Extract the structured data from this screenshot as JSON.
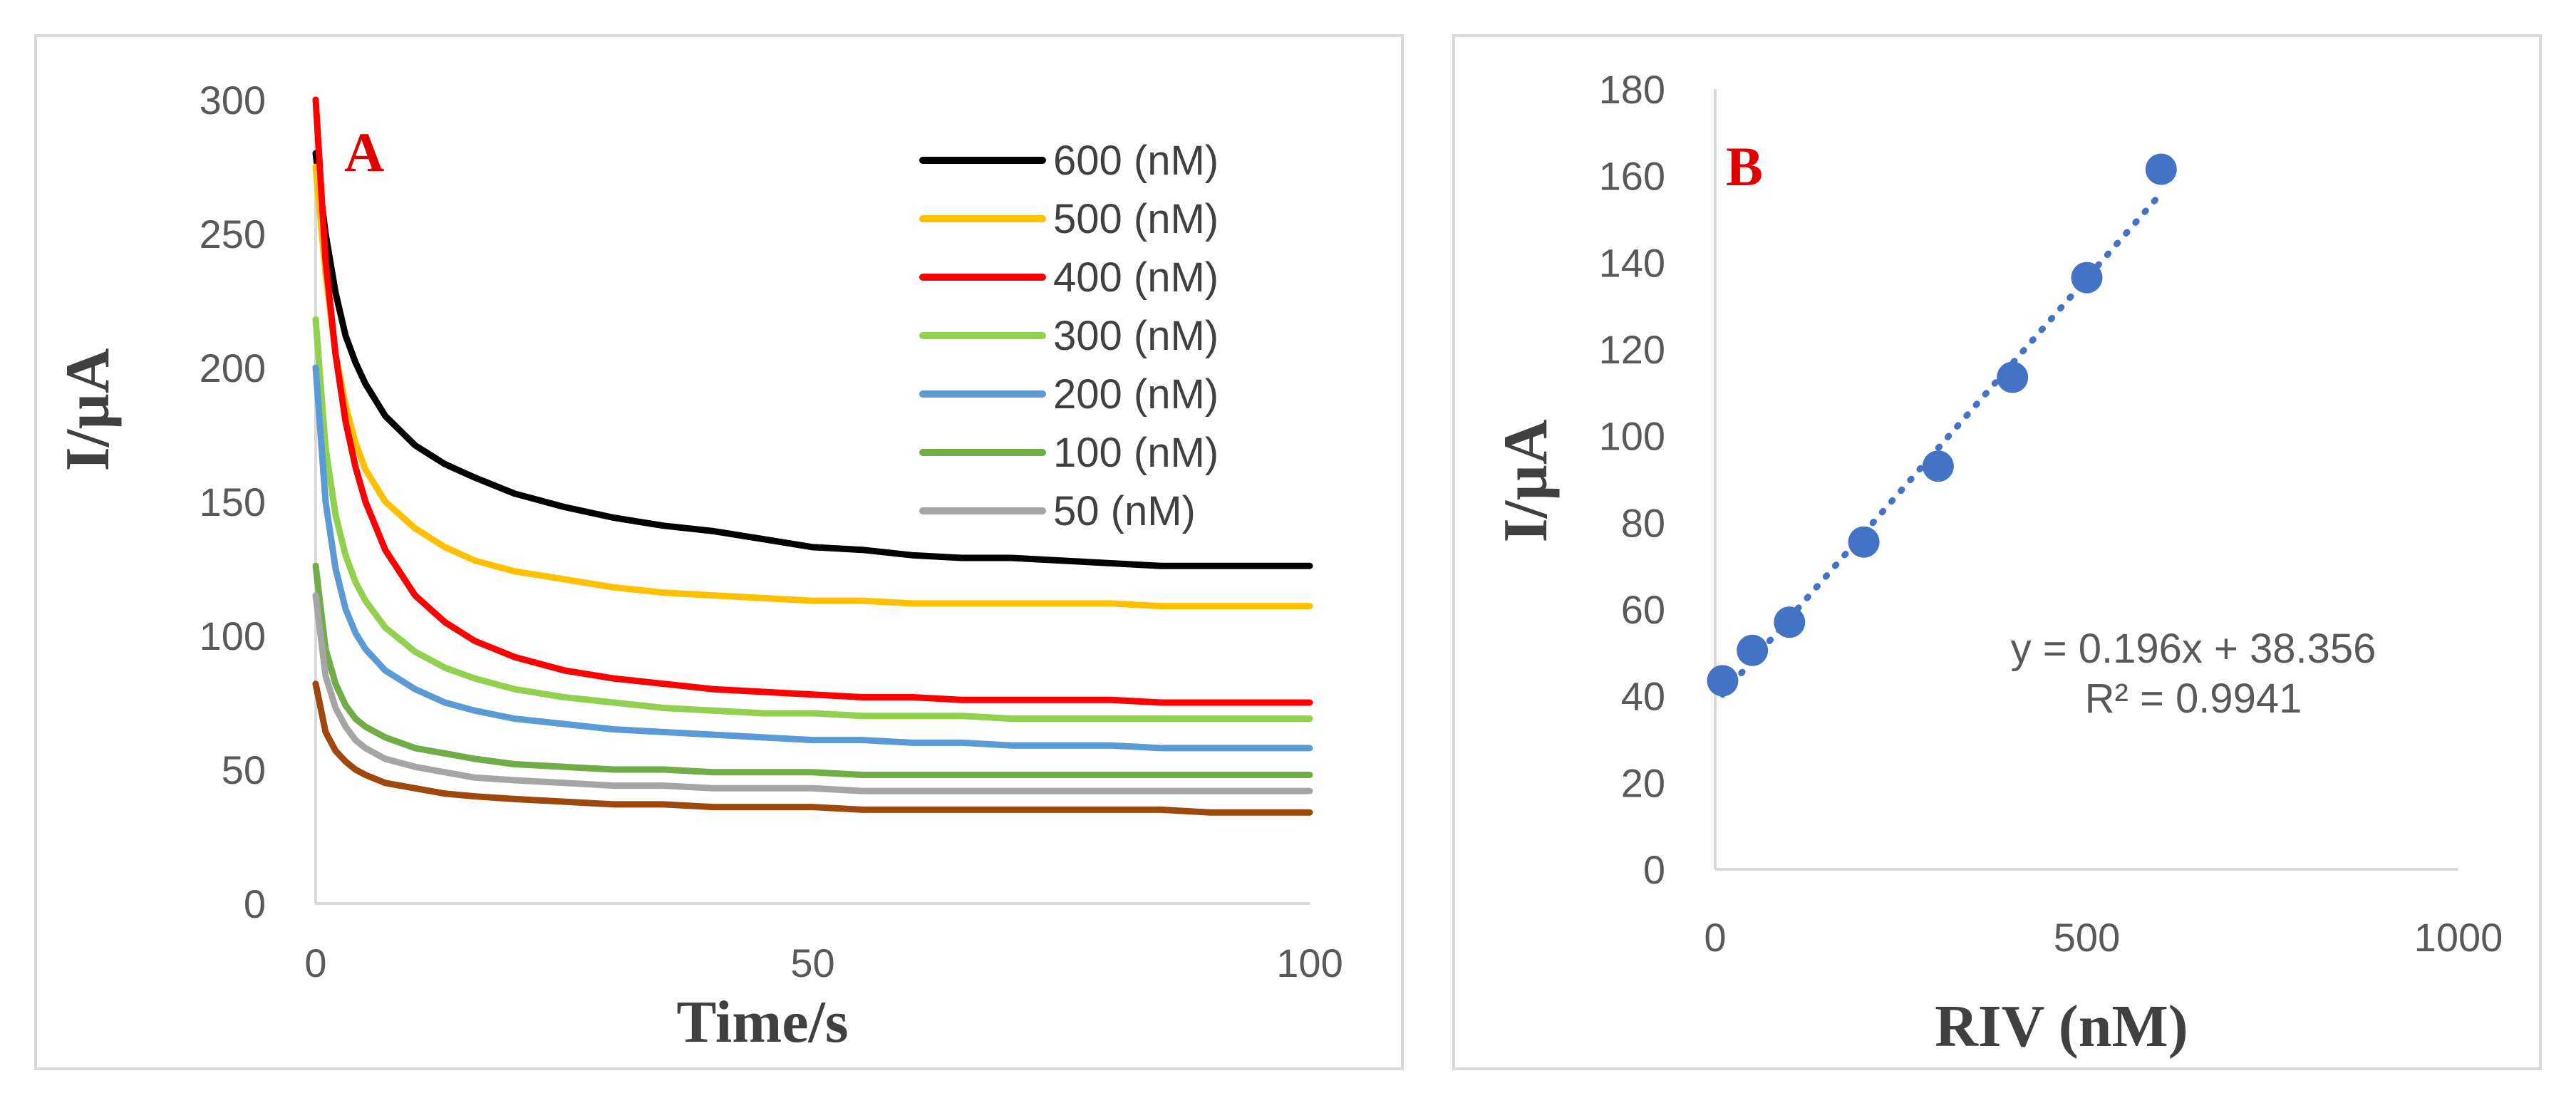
{
  "chart_data": [
    {
      "type": "line",
      "panel_label": "A",
      "xlabel": "Time/s",
      "ylabel": "I/µA",
      "xlim": [
        0,
        100
      ],
      "ylim": [
        0,
        300
      ],
      "x_ticks": [
        0,
        50,
        100
      ],
      "y_ticks": [
        0,
        50,
        100,
        150,
        200,
        250,
        300
      ],
      "legend_position": "top-right",
      "x": [
        0,
        1,
        2,
        3,
        4,
        5,
        7,
        10,
        13,
        16,
        20,
        25,
        30,
        35,
        40,
        45,
        50,
        55,
        60,
        65,
        70,
        75,
        80,
        85,
        90,
        95,
        100
      ],
      "series": [
        {
          "name": "600 (nM)",
          "color": "#000000",
          "in_legend": true,
          "values": [
            280,
            250,
            228,
            212,
            202,
            194,
            182,
            171,
            164,
            159,
            153,
            148,
            144,
            141,
            139,
            136,
            133,
            132,
            130,
            129,
            129,
            128,
            127,
            126,
            126,
            126,
            126
          ]
        },
        {
          "name": "500 (nM)",
          "color": "#ffc000",
          "in_legend": true,
          "values": [
            275,
            235,
            205,
            186,
            172,
            162,
            150,
            140,
            133,
            128,
            124,
            121,
            118,
            116,
            115,
            114,
            113,
            113,
            112,
            112,
            112,
            112,
            112,
            111,
            111,
            111,
            111
          ]
        },
        {
          "name": "400 (nM)",
          "color": "#ff0000",
          "in_legend": true,
          "values": [
            300,
            240,
            205,
            180,
            163,
            150,
            132,
            115,
            105,
            98,
            92,
            87,
            84,
            82,
            80,
            79,
            78,
            77,
            77,
            76,
            76,
            76,
            76,
            75,
            75,
            75,
            75
          ]
        },
        {
          "name": "300 (nM)",
          "color": "#92d050",
          "in_legend": true,
          "values": [
            218,
            170,
            145,
            130,
            120,
            113,
            103,
            94,
            88,
            84,
            80,
            77,
            75,
            73,
            72,
            71,
            71,
            70,
            70,
            70,
            69,
            69,
            69,
            69,
            69,
            69,
            69
          ]
        },
        {
          "name": "200 (nM)",
          "color": "#5b9bd5",
          "in_legend": true,
          "values": [
            200,
            150,
            125,
            110,
            101,
            95,
            87,
            80,
            75,
            72,
            69,
            67,
            65,
            64,
            63,
            62,
            61,
            61,
            60,
            60,
            59,
            59,
            59,
            58,
            58,
            58,
            58
          ]
        },
        {
          "name": "100 (nM)",
          "color": "#70ad47",
          "in_legend": true,
          "values": [
            126,
            95,
            82,
            74,
            69,
            66,
            62,
            58,
            56,
            54,
            52,
            51,
            50,
            50,
            49,
            49,
            49,
            48,
            48,
            48,
            48,
            48,
            48,
            48,
            48,
            48,
            48
          ]
        },
        {
          "name": "50 (nM)",
          "color": "#a5a5a5",
          "in_legend": true,
          "values": [
            115,
            85,
            73,
            66,
            61,
            58,
            54,
            51,
            49,
            47,
            46,
            45,
            44,
            44,
            43,
            43,
            43,
            42,
            42,
            42,
            42,
            42,
            42,
            42,
            42,
            42,
            42
          ]
        },
        {
          "name": "",
          "color": "#9e480e",
          "in_legend": false,
          "values": [
            82,
            64,
            57,
            53,
            50,
            48,
            45,
            43,
            41,
            40,
            39,
            38,
            37,
            37,
            36,
            36,
            36,
            35,
            35,
            35,
            35,
            35,
            35,
            35,
            34,
            34,
            34
          ]
        }
      ]
    },
    {
      "type": "scatter",
      "panel_label": "B",
      "xlabel": "RIV (nM)",
      "ylabel": "I/µA",
      "xlim": [
        0,
        1000
      ],
      "ylim": [
        0,
        180
      ],
      "x_ticks": [
        0,
        500,
        1000
      ],
      "y_ticks": [
        0,
        20,
        40,
        60,
        80,
        100,
        120,
        140,
        160,
        180
      ],
      "x": [
        10,
        50,
        100,
        200,
        300,
        400,
        500,
        600
      ],
      "y": [
        43.5,
        50.5,
        57,
        75.5,
        93,
        113.5,
        136.5,
        161.5
      ],
      "point_color": "#4472c4",
      "trendline": {
        "slope": 0.196,
        "intercept": 38.356,
        "x_range": [
          10,
          600
        ],
        "style": "dotted",
        "color": "#4472c4"
      },
      "equation_text": "y = 0.196x + 38.356",
      "r2_text": "R² = 0.9941"
    }
  ]
}
